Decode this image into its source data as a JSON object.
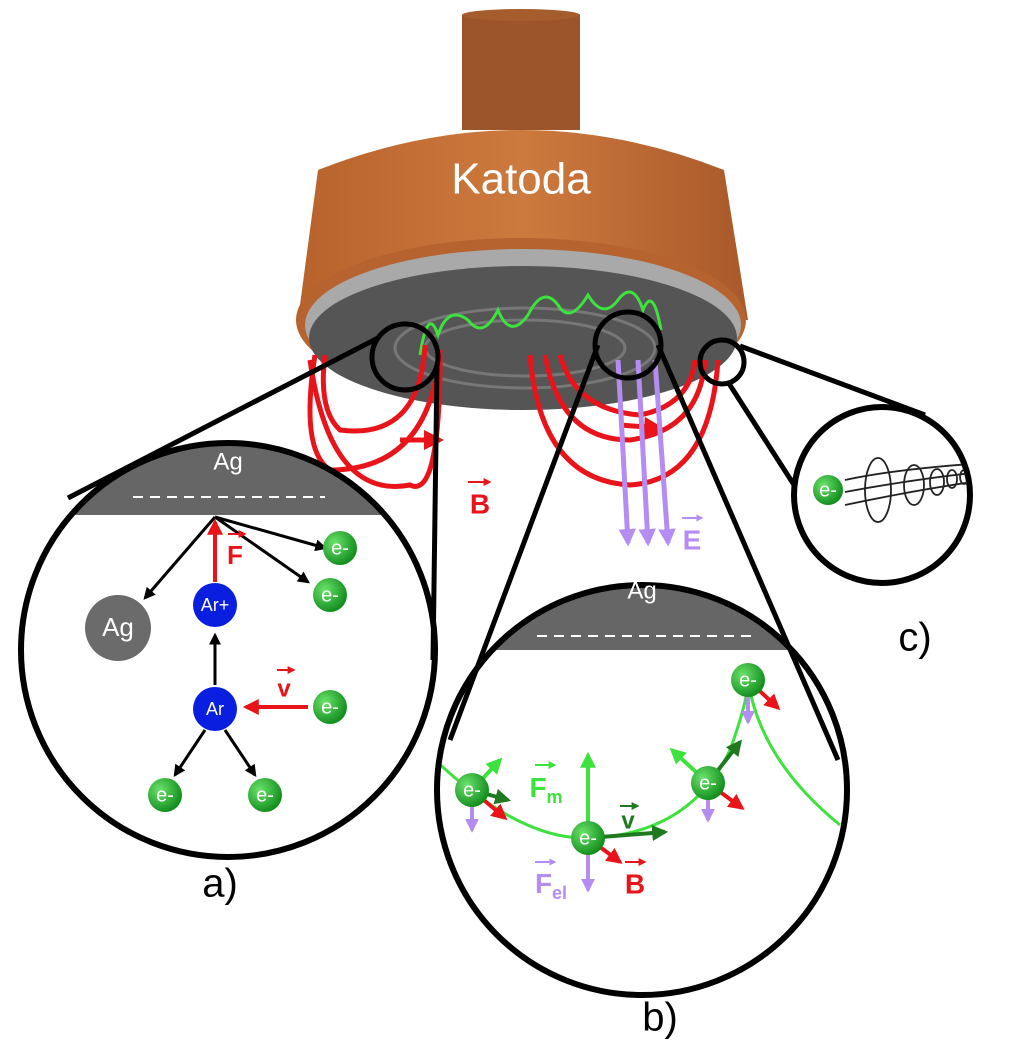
{
  "cathode": {
    "label": "Katoda"
  },
  "fields": {
    "magnetic": "B",
    "electric": "E"
  },
  "panel_a": {
    "label": "a)",
    "target": "Ag",
    "force": "F",
    "velocity": "v",
    "ions": [
      "Ar+",
      "Ar"
    ],
    "sputtered": "Ag",
    "electrons": [
      "e-",
      "e-",
      "e-",
      "e-",
      "e-"
    ]
  },
  "panel_b": {
    "label": "b)",
    "target": "Ag",
    "magnetic_force": {
      "symbol": "F",
      "subscript": "m"
    },
    "electric_force": {
      "symbol": "F",
      "subscript": "el"
    },
    "velocity": "v",
    "field": "B",
    "electrons": [
      "e-",
      "e-",
      "e-",
      "e-"
    ]
  },
  "panel_c": {
    "label": "c)",
    "electrons": [
      "e-"
    ]
  }
}
